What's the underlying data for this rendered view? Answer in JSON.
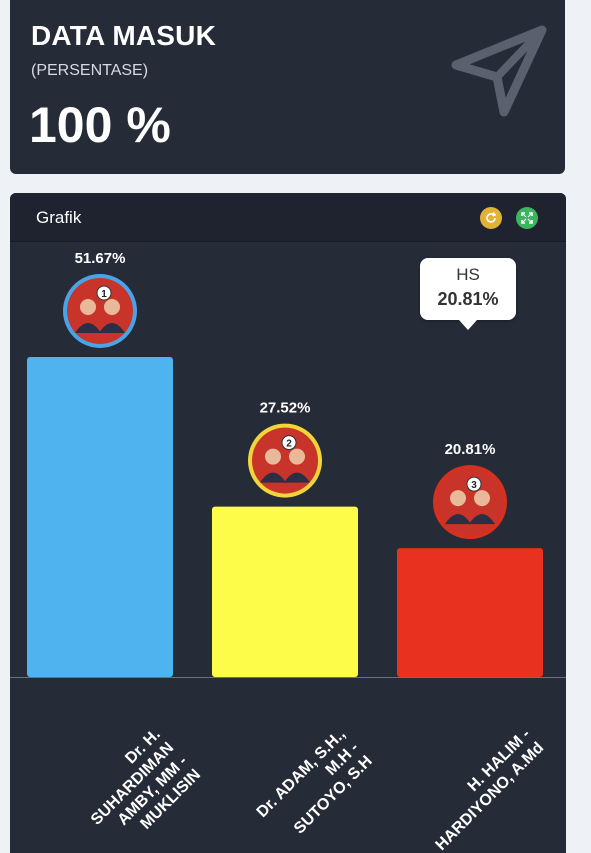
{
  "summary": {
    "title": "DATA MASUK",
    "subtitle": "(PERSENTASE)",
    "value": "100 %",
    "icon": "paper-plane-icon"
  },
  "chart_panel": {
    "title": "Grafik",
    "refresh_icon": "refresh-icon",
    "expand_icon": "expand-icon"
  },
  "tooltip": {
    "name": "HS",
    "value": "20.81%"
  },
  "chart_data": {
    "type": "bar",
    "categories": [
      "Dr. H. SUHARDIMAN AMBY, MM - MUKLISIN",
      "Dr. ADAM, S.H., M.H - SUTOYO, S.H",
      "H. HALIM - HARDIYONO, A.Md"
    ],
    "category_lines": [
      [
        "Dr. H.",
        "SUHARDIMAN",
        "AMBY, MM -",
        "MUKLISIN"
      ],
      [
        "Dr. ADAM, S.H.,",
        "M.H -",
        "SUTOYO, S.H"
      ],
      [
        "H. HALIM -",
        "HARDIYONO, A.Md"
      ]
    ],
    "values": [
      51.67,
      27.52,
      20.81
    ],
    "labels": [
      "51.67%",
      "27.52%",
      "20.81%"
    ],
    "candidate_numbers": [
      "1",
      "2",
      "3"
    ],
    "colors": [
      "#4fb3f0",
      "#fdfc48",
      "#e8321f"
    ],
    "ring_colors": [
      "#4aa3e8",
      "#f1d53a",
      "#d6301f"
    ],
    "ylim": [
      0,
      60
    ]
  }
}
